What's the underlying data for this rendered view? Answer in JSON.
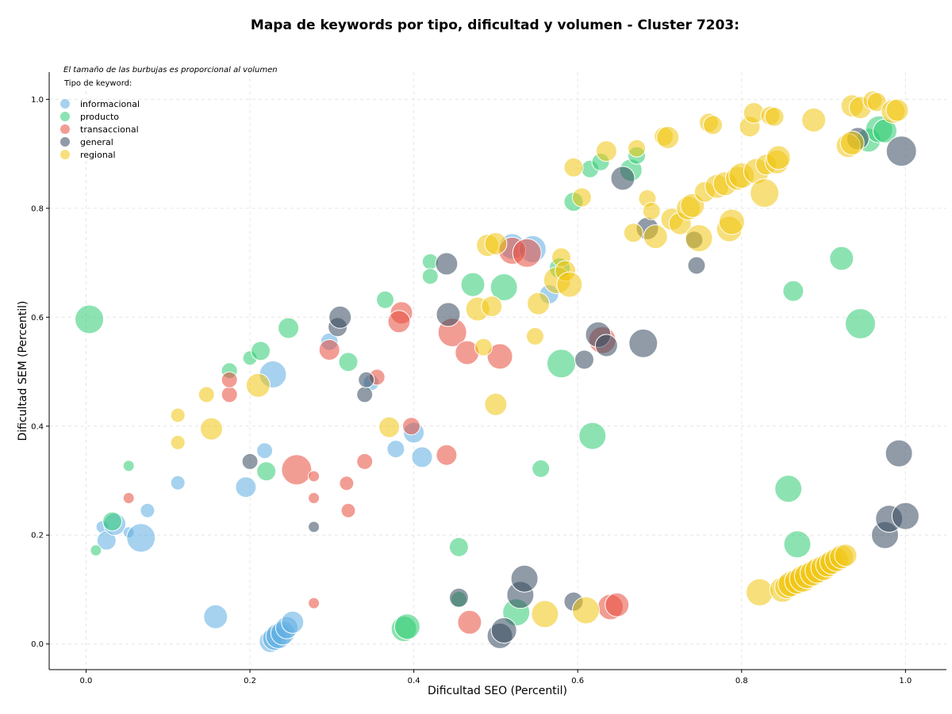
{
  "chart_data": {
    "type": "scatter",
    "title": "Mapa de keywords por tipo, dificultad y volumen - Cluster 7203:",
    "xlabel": "Dificultad SEO (Percentil)",
    "ylabel": "Dificultad SEM (Percentil)",
    "xlim": [
      -0.045,
      1.05
    ],
    "ylim": [
      -0.047,
      1.05
    ],
    "xticks": [
      "0.0",
      "0.2",
      "0.4",
      "0.6",
      "0.8",
      "1.0"
    ],
    "yticks": [
      "0.0",
      "0.2",
      "0.4",
      "0.6",
      "0.8",
      "1.0"
    ],
    "grid": true,
    "note": "El tamaño de las burbujas es proporcional al volumen",
    "legend_title": "Tipo de keyword:",
    "legend_position": "top-left",
    "series": [
      {
        "name": "informacional",
        "color": "#5DADE2",
        "points": [
          [
            0.02,
            0.215,
            8
          ],
          [
            0.025,
            0.19,
            12
          ],
          [
            0.035,
            0.22,
            14
          ],
          [
            0.052,
            0.205,
            7
          ],
          [
            0.067,
            0.195,
            18
          ],
          [
            0.075,
            0.245,
            9
          ],
          [
            0.112,
            0.296,
            9
          ],
          [
            0.158,
            0.05,
            15
          ],
          [
            0.195,
            0.288,
            13
          ],
          [
            0.218,
            0.355,
            10
          ],
          [
            0.225,
            0.005,
            14
          ],
          [
            0.23,
            0.01,
            15
          ],
          [
            0.235,
            0.015,
            16
          ],
          [
            0.24,
            0.02,
            15
          ],
          [
            0.245,
            0.03,
            14
          ],
          [
            0.252,
            0.04,
            14
          ],
          [
            0.228,
            0.495,
            17
          ],
          [
            0.297,
            0.555,
            11
          ],
          [
            0.348,
            0.48,
            10
          ],
          [
            0.378,
            0.358,
            11
          ],
          [
            0.4,
            0.388,
            13
          ],
          [
            0.41,
            0.343,
            13
          ],
          [
            0.52,
            0.73,
            16
          ],
          [
            0.545,
            0.725,
            17
          ],
          [
            0.565,
            0.642,
            12
          ]
        ]
      },
      {
        "name": "producto",
        "color": "#2ECC71",
        "points": [
          [
            0.004,
            0.596,
            18
          ],
          [
            0.012,
            0.172,
            7
          ],
          [
            0.032,
            0.225,
            12
          ],
          [
            0.052,
            0.327,
            7
          ],
          [
            0.175,
            0.502,
            10
          ],
          [
            0.2,
            0.525,
            9
          ],
          [
            0.213,
            0.538,
            12
          ],
          [
            0.22,
            0.317,
            12
          ],
          [
            0.247,
            0.58,
            13
          ],
          [
            0.32,
            0.518,
            12
          ],
          [
            0.365,
            0.632,
            11
          ],
          [
            0.388,
            0.028,
            16
          ],
          [
            0.392,
            0.032,
            16
          ],
          [
            0.42,
            0.702,
            10
          ],
          [
            0.42,
            0.675,
            10
          ],
          [
            0.455,
            0.082,
            10
          ],
          [
            0.455,
            0.178,
            12
          ],
          [
            0.472,
            0.66,
            15
          ],
          [
            0.51,
            0.655,
            17
          ],
          [
            0.525,
            0.058,
            17
          ],
          [
            0.555,
            0.322,
            11
          ],
          [
            0.578,
            0.69,
            13
          ],
          [
            0.58,
            0.515,
            18
          ],
          [
            0.595,
            0.812,
            12
          ],
          [
            0.615,
            0.872,
            11
          ],
          [
            0.618,
            0.382,
            17
          ],
          [
            0.628,
            0.885,
            11
          ],
          [
            0.665,
            0.87,
            14
          ],
          [
            0.672,
            0.897,
            11
          ],
          [
            0.857,
            0.285,
            17
          ],
          [
            0.863,
            0.648,
            13
          ],
          [
            0.868,
            0.183,
            17
          ],
          [
            0.922,
            0.708,
            15
          ],
          [
            0.945,
            0.588,
            19
          ],
          [
            0.955,
            0.925,
            15
          ],
          [
            0.968,
            0.945,
            17
          ],
          [
            0.975,
            0.942,
            15
          ]
        ]
      },
      {
        "name": "transaccional",
        "color": "#E74C3C",
        "points": [
          [
            0.052,
            0.268,
            7
          ],
          [
            0.175,
            0.458,
            10
          ],
          [
            0.175,
            0.485,
            10
          ],
          [
            0.257,
            0.32,
            19
          ],
          [
            0.278,
            0.075,
            7
          ],
          [
            0.278,
            0.308,
            7
          ],
          [
            0.278,
            0.268,
            7
          ],
          [
            0.297,
            0.54,
            13
          ],
          [
            0.318,
            0.295,
            9
          ],
          [
            0.32,
            0.245,
            9
          ],
          [
            0.34,
            0.335,
            10
          ],
          [
            0.355,
            0.49,
            10
          ],
          [
            0.385,
            0.608,
            14
          ],
          [
            0.382,
            0.592,
            14
          ],
          [
            0.397,
            0.4,
            11
          ],
          [
            0.44,
            0.347,
            13
          ],
          [
            0.447,
            0.572,
            18
          ],
          [
            0.465,
            0.535,
            15
          ],
          [
            0.468,
            0.04,
            15
          ],
          [
            0.505,
            0.528,
            16
          ],
          [
            0.52,
            0.722,
            17
          ],
          [
            0.538,
            0.718,
            18
          ],
          [
            0.63,
            0.558,
            17
          ],
          [
            0.64,
            0.068,
            16
          ],
          [
            0.648,
            0.072,
            15
          ]
        ]
      },
      {
        "name": "general",
        "color": "#34495E",
        "points": [
          [
            0.2,
            0.335,
            10
          ],
          [
            0.278,
            0.215,
            7
          ],
          [
            0.307,
            0.582,
            12
          ],
          [
            0.31,
            0.6,
            14
          ],
          [
            0.34,
            0.458,
            10
          ],
          [
            0.342,
            0.485,
            10
          ],
          [
            0.44,
            0.698,
            14
          ],
          [
            0.442,
            0.605,
            15
          ],
          [
            0.455,
            0.085,
            12
          ],
          [
            0.505,
            0.015,
            16
          ],
          [
            0.51,
            0.025,
            16
          ],
          [
            0.53,
            0.09,
            17
          ],
          [
            0.535,
            0.12,
            17
          ],
          [
            0.595,
            0.078,
            12
          ],
          [
            0.608,
            0.522,
            12
          ],
          [
            0.625,
            0.568,
            16
          ],
          [
            0.635,
            0.548,
            14
          ],
          [
            0.655,
            0.855,
            15
          ],
          [
            0.68,
            0.552,
            18
          ],
          [
            0.685,
            0.763,
            14
          ],
          [
            0.742,
            0.742,
            11
          ],
          [
            0.745,
            0.695,
            11
          ],
          [
            0.942,
            0.928,
            14
          ],
          [
            0.975,
            0.2,
            17
          ],
          [
            0.98,
            0.23,
            17
          ],
          [
            0.992,
            0.35,
            17
          ],
          [
            0.995,
            0.905,
            19
          ],
          [
            1.0,
            0.235,
            17
          ]
        ]
      },
      {
        "name": "regional",
        "color": "#F1C40F",
        "points": [
          [
            0.112,
            0.42,
            9
          ],
          [
            0.112,
            0.37,
            9
          ],
          [
            0.147,
            0.458,
            10
          ],
          [
            0.153,
            0.395,
            14
          ],
          [
            0.21,
            0.475,
            15
          ],
          [
            0.37,
            0.398,
            13
          ],
          [
            0.485,
            0.545,
            11
          ],
          [
            0.478,
            0.615,
            15
          ],
          [
            0.495,
            0.62,
            13
          ],
          [
            0.5,
            0.44,
            14
          ],
          [
            0.49,
            0.732,
            14
          ],
          [
            0.5,
            0.735,
            14
          ],
          [
            0.548,
            0.565,
            11
          ],
          [
            0.552,
            0.625,
            14
          ],
          [
            0.56,
            0.055,
            17
          ],
          [
            0.575,
            0.668,
            17
          ],
          [
            0.58,
            0.71,
            12
          ],
          [
            0.585,
            0.685,
            13
          ],
          [
            0.59,
            0.66,
            16
          ],
          [
            0.595,
            0.875,
            12
          ],
          [
            0.605,
            0.82,
            12
          ],
          [
            0.61,
            0.062,
            17
          ],
          [
            0.635,
            0.905,
            13
          ],
          [
            0.668,
            0.755,
            12
          ],
          [
            0.672,
            0.91,
            11
          ],
          [
            0.685,
            0.818,
            11
          ],
          [
            0.69,
            0.795,
            11
          ],
          [
            0.695,
            0.748,
            15
          ],
          [
            0.705,
            0.932,
            12
          ],
          [
            0.71,
            0.93,
            14
          ],
          [
            0.715,
            0.78,
            14
          ],
          [
            0.725,
            0.772,
            14
          ],
          [
            0.735,
            0.8,
            15
          ],
          [
            0.74,
            0.805,
            15
          ],
          [
            0.748,
            0.745,
            17
          ],
          [
            0.755,
            0.83,
            13
          ],
          [
            0.76,
            0.957,
            12
          ],
          [
            0.765,
            0.953,
            12
          ],
          [
            0.77,
            0.84,
            15
          ],
          [
            0.78,
            0.845,
            15
          ],
          [
            0.785,
            0.762,
            16
          ],
          [
            0.788,
            0.775,
            16
          ],
          [
            0.795,
            0.855,
            15
          ],
          [
            0.8,
            0.86,
            16
          ],
          [
            0.81,
            0.95,
            13
          ],
          [
            0.815,
            0.975,
            13
          ],
          [
            0.818,
            0.868,
            16
          ],
          [
            0.822,
            0.095,
            17
          ],
          [
            0.828,
            0.828,
            18
          ],
          [
            0.83,
            0.88,
            13
          ],
          [
            0.835,
            0.97,
            12
          ],
          [
            0.84,
            0.968,
            12
          ],
          [
            0.843,
            0.885,
            15
          ],
          [
            0.845,
            0.893,
            15
          ],
          [
            0.85,
            0.1,
            16
          ],
          [
            0.855,
            0.105,
            15
          ],
          [
            0.86,
            0.11,
            16
          ],
          [
            0.868,
            0.115,
            16
          ],
          [
            0.875,
            0.12,
            17
          ],
          [
            0.88,
            0.125,
            16
          ],
          [
            0.887,
            0.13,
            16
          ],
          [
            0.893,
            0.135,
            16
          ],
          [
            0.9,
            0.14,
            16
          ],
          [
            0.905,
            0.145,
            15
          ],
          [
            0.91,
            0.15,
            15
          ],
          [
            0.916,
            0.155,
            15
          ],
          [
            0.922,
            0.16,
            15
          ],
          [
            0.927,
            0.163,
            14
          ],
          [
            0.888,
            0.962,
            15
          ],
          [
            0.93,
            0.915,
            15
          ],
          [
            0.935,
            0.92,
            15
          ],
          [
            0.935,
            0.988,
            14
          ],
          [
            0.945,
            0.985,
            14
          ],
          [
            0.96,
            0.998,
            12
          ],
          [
            0.965,
            0.995,
            12
          ],
          [
            0.985,
            0.978,
            15
          ],
          [
            0.99,
            0.98,
            14
          ]
        ]
      }
    ]
  }
}
